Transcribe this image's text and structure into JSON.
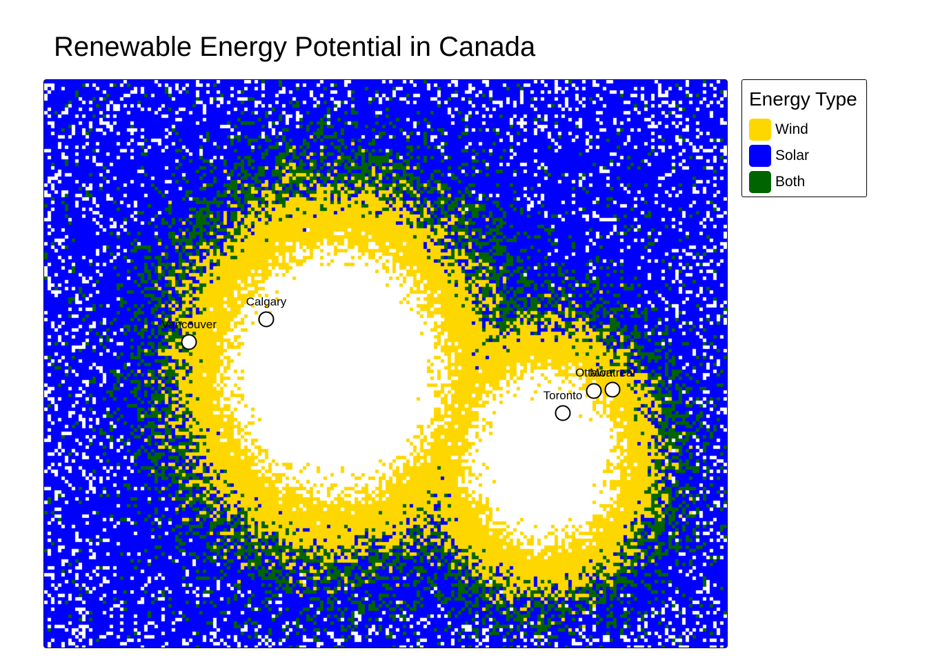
{
  "title": "Renewable Energy Potential in Canada",
  "legend": {
    "title": "Energy Type",
    "items": [
      {
        "label": "Wind",
        "color": "#FFD700"
      },
      {
        "label": "Solar",
        "color": "#0000FF"
      },
      {
        "label": "Both",
        "color": "#006400"
      }
    ]
  },
  "map": {
    "background_color": "#FFFFFF",
    "cities": [
      {
        "name": "Calgary"
      },
      {
        "name": "Vancouver"
      },
      {
        "name": "Ottawa"
      },
      {
        "name": "Montreal"
      },
      {
        "name": "Toronto"
      }
    ]
  }
}
